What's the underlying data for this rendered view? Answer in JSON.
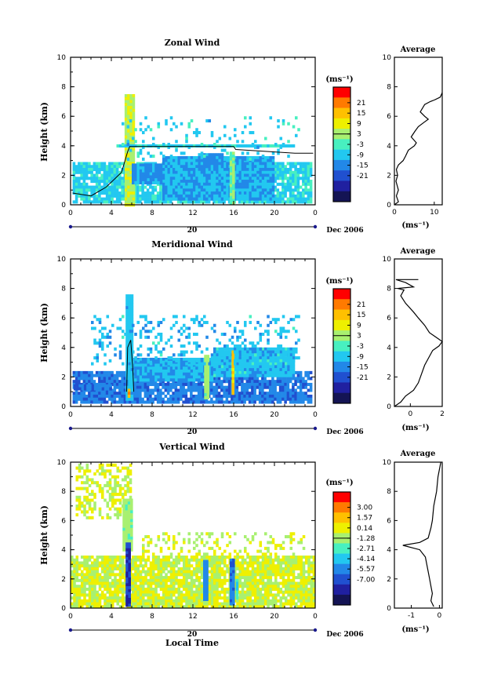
{
  "chart_data": [
    {
      "type": "heatmap",
      "title": "Zonal Wind",
      "ylabel": "Height (km)",
      "xlim": [
        0,
        24
      ],
      "ylim": [
        0,
        10
      ],
      "x_ticks": [
        "0",
        "4",
        "8",
        "12",
        "16",
        "20",
        "0"
      ],
      "y_ticks": [
        "0",
        "2",
        "4",
        "6",
        "8",
        "10"
      ],
      "date_axis": {
        "label": "20",
        "month_label": "Dec 2006"
      },
      "colorbar": {
        "unit": "(ms⁻¹)",
        "ticks": [
          "21",
          "15",
          "9",
          "3",
          "-3",
          "-9",
          "-15",
          "-21"
        ],
        "colors": [
          "#ff0000",
          "#ff7a00",
          "#ffc000",
          "#eef000",
          "#a8f070",
          "#48f0c0",
          "#22c8f0",
          "#2288e8",
          "#2050d0",
          "#2020a0",
          "#141454"
        ]
      },
      "features": [
        {
          "kind": "background",
          "x0": 0.2,
          "x1": 23.8,
          "y0": 0.0,
          "y1": 2.9,
          "value": -4
        },
        {
          "kind": "patch",
          "x0": 9.0,
          "x1": 20.0,
          "y0": 0.3,
          "y1": 3.3,
          "value": -8
        },
        {
          "kind": "patch",
          "x0": 12.5,
          "x1": 15.0,
          "y0": 2.6,
          "y1": 3.5,
          "value": -10
        },
        {
          "kind": "column",
          "x0": 5.3,
          "x1": 6.2,
          "y0": 0.0,
          "y1": 7.5,
          "value": 8
        },
        {
          "kind": "column",
          "x0": 15.6,
          "x1": 16.2,
          "y0": 0.0,
          "y1": 3.6,
          "value": 3
        },
        {
          "kind": "layer",
          "x0": 4.5,
          "x1": 22.0,
          "y0": 3.8,
          "y1": 4.1,
          "value": -4
        },
        {
          "kind": "patch",
          "x0": 6.0,
          "x1": 9.0,
          "y0": 1.4,
          "y1": 2.8,
          "value": -10
        },
        {
          "kind": "scatter",
          "x0": 5.0,
          "x1": 22.5,
          "y0": 3.0,
          "y1": 6.0,
          "value": -5,
          "density": 0.12
        }
      ],
      "zero_contour": [
        [
          0.2,
          0.8
        ],
        [
          2.0,
          0.6
        ],
        [
          3.5,
          1.2
        ],
        [
          5.0,
          2.2
        ],
        [
          5.6,
          3.6
        ],
        [
          5.8,
          3.95
        ],
        [
          16.0,
          3.95
        ],
        [
          16.2,
          3.75
        ],
        [
          22.0,
          3.5
        ],
        [
          23.8,
          3.5
        ]
      ],
      "profile": {
        "title": "Average",
        "xlabel": "(ms⁻¹)",
        "xlim": [
          0,
          12
        ],
        "x_ticks": [
          "0",
          "10"
        ],
        "y_ticks": [
          "0",
          "2",
          "4",
          "6",
          "8",
          "10"
        ],
        "points": [
          [
            0,
            0
          ],
          [
            1,
            0.2
          ],
          [
            0.5,
            0.6
          ],
          [
            1,
            1
          ],
          [
            0.4,
            1.6
          ],
          [
            0.8,
            2.0
          ],
          [
            0.5,
            2.4
          ],
          [
            1.0,
            2.7
          ],
          [
            2.2,
            3.0
          ],
          [
            2.8,
            3.3
          ],
          [
            3.5,
            3.7
          ],
          [
            5.0,
            4.0
          ],
          [
            5.5,
            4.2
          ],
          [
            4.2,
            4.6
          ],
          [
            5.2,
            5.0
          ],
          [
            6.0,
            5.3
          ],
          [
            7.5,
            5.6
          ],
          [
            8.5,
            5.8
          ],
          [
            7.6,
            6.0
          ],
          [
            6.5,
            6.3
          ],
          [
            7.6,
            6.8
          ],
          [
            9.0,
            7.0
          ],
          [
            10.0,
            7.1
          ],
          [
            11.5,
            7.3
          ],
          [
            12,
            7.6
          ]
        ]
      }
    },
    {
      "type": "heatmap",
      "title": "Meridional Wind",
      "ylabel": "Height (km)",
      "xlim": [
        0,
        24
      ],
      "ylim": [
        0,
        10
      ],
      "x_ticks": [
        "0",
        "4",
        "8",
        "12",
        "16",
        "20",
        "0"
      ],
      "y_ticks": [
        "0",
        "2",
        "4",
        "6",
        "8",
        "10"
      ],
      "date_axis": {
        "label": "20",
        "month_label": "Dec 2006"
      },
      "colorbar": {
        "unit": "(ms⁻¹)",
        "ticks": [
          "21",
          "15",
          "9",
          "3",
          "-3",
          "-9",
          "-15",
          "-21"
        ],
        "colors": [
          "#ff0000",
          "#ff7a00",
          "#ffc000",
          "#eef000",
          "#a8f070",
          "#48f0c0",
          "#22c8f0",
          "#2288e8",
          "#2050d0",
          "#2020a0",
          "#141454"
        ]
      },
      "features": [
        {
          "kind": "background",
          "x0": 0.2,
          "x1": 23.8,
          "y0": 0.3,
          "y1": 2.4,
          "value": -12
        },
        {
          "kind": "patch",
          "x0": 0.3,
          "x1": 4.0,
          "y0": 1.0,
          "y1": 1.5,
          "value": -14
        },
        {
          "kind": "patch",
          "x0": 6.0,
          "x1": 14.0,
          "y0": 1.6,
          "y1": 3.3,
          "value": -8
        },
        {
          "kind": "patch",
          "x0": 14.0,
          "x1": 22.0,
          "y0": 2.0,
          "y1": 4.0,
          "value": -6
        },
        {
          "kind": "column",
          "x0": 5.4,
          "x1": 6.1,
          "y0": 0.5,
          "y1": 7.6,
          "value": -6
        },
        {
          "kind": "column",
          "x0": 13.1,
          "x1": 13.6,
          "y0": 0.5,
          "y1": 3.5,
          "value": 5
        },
        {
          "kind": "column",
          "x0": 15.8,
          "x1": 16.1,
          "y0": 0.7,
          "y1": 3.8,
          "value": 15
        },
        {
          "kind": "column",
          "x0": 5.6,
          "x1": 5.8,
          "y0": 0.6,
          "y1": 1.2,
          "value": 20
        },
        {
          "kind": "scatter",
          "x0": 2.0,
          "x1": 22.5,
          "y0": 2.8,
          "y1": 6.2,
          "value": -6,
          "density": 0.22
        }
      ],
      "zero_contour": [
        [
          5.5,
          1.0
        ],
        [
          5.6,
          4.0
        ],
        [
          5.9,
          4.5
        ],
        [
          6.1,
          2.6
        ],
        [
          6.2,
          1.0
        ]
      ],
      "profile": {
        "title": "Average",
        "xlabel": "(ms⁻¹)",
        "xlim": [
          -1,
          2
        ],
        "x_ticks": [
          "0",
          "2"
        ],
        "y_ticks": [
          "0",
          "2",
          "4",
          "6",
          "8",
          "10"
        ],
        "points": [
          [
            -1,
            0
          ],
          [
            -0.6,
            0.3
          ],
          [
            -0.3,
            0.7
          ],
          [
            0.2,
            1.1
          ],
          [
            0.5,
            1.6
          ],
          [
            0.7,
            2.2
          ],
          [
            0.9,
            2.8
          ],
          [
            1.2,
            3.4
          ],
          [
            1.4,
            3.8
          ],
          [
            1.8,
            4.1
          ],
          [
            2,
            4.4
          ],
          [
            1.6,
            4.7
          ],
          [
            1.2,
            5.0
          ],
          [
            0.9,
            5.5
          ],
          [
            0.5,
            6.0
          ],
          [
            0.2,
            6.4
          ],
          [
            -0.3,
            7.0
          ],
          [
            -0.6,
            7.5
          ],
          [
            -0.4,
            7.9
          ],
          [
            -0.8,
            8.0
          ],
          [
            0.2,
            8.1
          ],
          [
            -0.3,
            8.4
          ],
          [
            -0.9,
            8.6
          ],
          [
            0.5,
            8.6
          ]
        ]
      }
    },
    {
      "type": "heatmap",
      "title": "Vertical Wind",
      "xlabel": "Local Time",
      "ylabel": "Height (km)",
      "xlim": [
        0,
        24
      ],
      "ylim": [
        0,
        10
      ],
      "x_ticks": [
        "0",
        "4",
        "8",
        "12",
        "16",
        "20",
        "0"
      ],
      "y_ticks": [
        "0",
        "2",
        "4",
        "6",
        "8",
        "10"
      ],
      "date_axis": {
        "label": "20",
        "month_label": "Dec 2006"
      },
      "colorbar": {
        "unit": "(ms⁻¹)",
        "ticks": [
          "3.00",
          "1.57",
          "0.14",
          "-1.28",
          "-2.71",
          "-4.14",
          "-5.57",
          "-7.00"
        ],
        "colors": [
          "#ff0000",
          "#ff7a00",
          "#ffc000",
          "#eef000",
          "#a8f070",
          "#48f0c0",
          "#22c8f0",
          "#2288e8",
          "#2050d0",
          "#2020a0",
          "#141454"
        ]
      },
      "features": [
        {
          "kind": "background",
          "x0": 0.0,
          "x1": 24.0,
          "y0": 0.0,
          "y1": 3.6,
          "value": 0.0
        },
        {
          "kind": "scatter",
          "x0": 0.5,
          "x1": 6.0,
          "y0": 6.0,
          "y1": 9.9,
          "value": 0.0,
          "density": 0.45
        },
        {
          "kind": "column",
          "x0": 5.1,
          "x1": 6.0,
          "y0": 4.0,
          "y1": 7.5,
          "value": -1.0
        },
        {
          "kind": "column",
          "x0": 5.4,
          "x1": 6.0,
          "y0": 0.1,
          "y1": 4.5,
          "value": -6.5
        },
        {
          "kind": "column",
          "x0": 13.0,
          "x1": 13.6,
          "y0": 0.5,
          "y1": 3.3,
          "value": -4.5
        },
        {
          "kind": "column",
          "x0": 15.6,
          "x1": 16.2,
          "y0": 0.2,
          "y1": 3.4,
          "value": -5.0
        },
        {
          "kind": "column",
          "x0": 16.2,
          "x1": 16.5,
          "y0": 0.6,
          "y1": 2.0,
          "value": -2.5
        },
        {
          "kind": "scatter",
          "x0": 7.0,
          "x1": 23.0,
          "y0": 3.5,
          "y1": 5.2,
          "value": 0.0,
          "density": 0.25
        }
      ],
      "zero_contour": [],
      "profile": {
        "title": "Average",
        "xlabel": "(ms⁻¹)",
        "xlim": [
          -1.6,
          0.1
        ],
        "x_ticks": [
          "-1",
          "0"
        ],
        "y_ticks": [
          "0",
          "2",
          "4",
          "6",
          "8",
          "10"
        ],
        "points": [
          [
            -0.2,
            0.1
          ],
          [
            -0.3,
            0.5
          ],
          [
            -0.25,
            1.0
          ],
          [
            -0.3,
            1.5
          ],
          [
            -0.35,
            2.0
          ],
          [
            -0.4,
            2.5
          ],
          [
            -0.45,
            3.0
          ],
          [
            -0.5,
            3.5
          ],
          [
            -0.7,
            4.0
          ],
          [
            -1.3,
            4.3
          ],
          [
            -0.7,
            4.5
          ],
          [
            -0.4,
            4.8
          ],
          [
            -0.3,
            5.5
          ],
          [
            -0.25,
            6.0
          ],
          [
            -0.2,
            7.0
          ],
          [
            -0.1,
            8.0
          ],
          [
            -0.05,
            9.0
          ],
          [
            0.05,
            10
          ]
        ]
      }
    }
  ]
}
